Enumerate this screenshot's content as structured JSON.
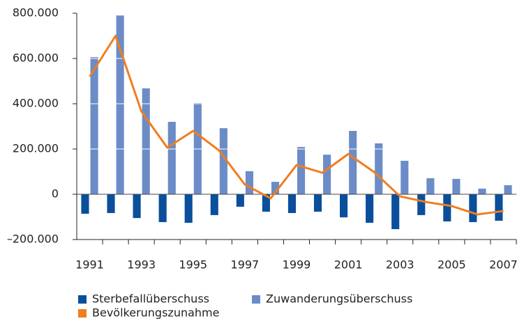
{
  "chart_data": {
    "type": "bar",
    "categories": [
      "1991",
      null,
      "1993",
      null,
      "1995",
      null,
      "1997",
      null,
      "1999",
      null,
      "2001",
      null,
      "2003",
      null,
      "2005",
      null,
      "2007"
    ],
    "series": [
      {
        "name": "Sterbefallüberschuss",
        "color": "#0a4f9c",
        "values": [
          -86000,
          -83000,
          -105000,
          -123000,
          -126000,
          -92000,
          -55000,
          -77000,
          -83000,
          -77000,
          -102000,
          -126000,
          -154000,
          -92000,
          -120000,
          -123000,
          -117000
        ]
      },
      {
        "name": "Zuwanderungsüberschuss",
        "color": "#6b8cc7",
        "values": [
          606000,
          790000,
          468000,
          320000,
          403000,
          292000,
          102000,
          55000,
          209000,
          175000,
          280000,
          225000,
          148000,
          71000,
          68000,
          25000,
          40000
        ]
      },
      {
        "name": "Bevölkerungszunahme",
        "color": "#f07d1e",
        "type": "line",
        "values": [
          520000,
          700000,
          366000,
          206000,
          280000,
          194000,
          43000,
          -18000,
          129000,
          95000,
          178000,
          98000,
          -9000,
          -34000,
          -52000,
          -89000,
          -74000
        ]
      }
    ],
    "ylim": [
      -200000,
      800000
    ],
    "yticks": [
      {
        "value": -200000,
        "label": "–200.000"
      },
      0,
      {
        "value": 200000,
        "label": "200.000"
      },
      {
        "value": 400000,
        "label": "400.000"
      },
      {
        "value": 600000,
        "label": "600.000"
      },
      {
        "value": 800000,
        "label": "800.000"
      }
    ],
    "grid": true
  }
}
